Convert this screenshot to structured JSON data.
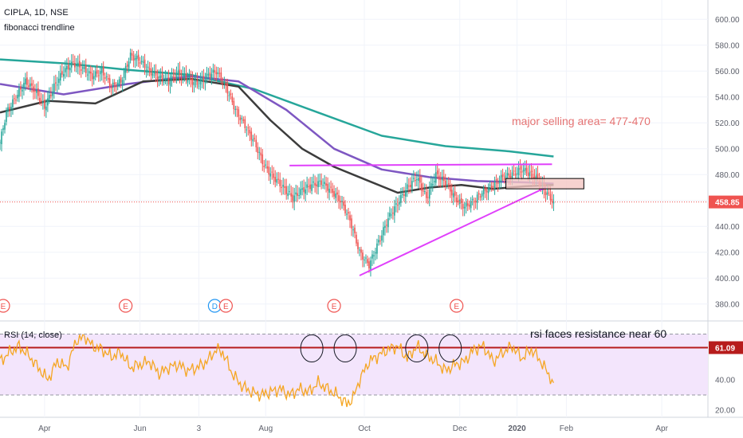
{
  "chart_data": [
    {
      "type": "candlestick",
      "symbol_line": "CIPLA, 1D, NSE",
      "indicator_line": "fibonacci trendline",
      "ylim": [
        370,
        610
      ],
      "y_ticks": [
        "600.00",
        "580.00",
        "560.00",
        "540.00",
        "520.00",
        "500.00",
        "480.00",
        "460.00",
        "440.00",
        "420.00",
        "400.00",
        "380.00"
      ],
      "y_tick_values": [
        600,
        580,
        560,
        540,
        520,
        500,
        480,
        460,
        440,
        420,
        400,
        380
      ],
      "last_price_label": "458.85",
      "last_price": 458.85,
      "x_labels": [
        "Apr",
        "Jun",
        "3",
        "Aug",
        "Oct",
        "Dec",
        "2020",
        "Feb",
        "Apr"
      ],
      "x_label_days": [
        28,
        88,
        125,
        167,
        229,
        289,
        325,
        356,
        416
      ],
      "total_days": 445,
      "ohlc_key_points": [
        [
          0,
          505
        ],
        [
          4,
          528
        ],
        [
          10,
          540
        ],
        [
          16,
          552
        ],
        [
          22,
          545
        ],
        [
          28,
          532
        ],
        [
          34,
          548
        ],
        [
          40,
          560
        ],
        [
          46,
          566
        ],
        [
          52,
          562
        ],
        [
          58,
          556
        ],
        [
          64,
          560
        ],
        [
          70,
          548
        ],
        [
          76,
          552
        ],
        [
          82,
          572
        ],
        [
          88,
          568
        ],
        [
          94,
          560
        ],
        [
          100,
          555
        ],
        [
          106,
          552
        ],
        [
          112,
          558
        ],
        [
          118,
          554
        ],
        [
          124,
          550
        ],
        [
          130,
          556
        ],
        [
          136,
          560
        ],
        [
          142,
          548
        ],
        [
          148,
          530
        ],
        [
          154,
          518
        ],
        [
          160,
          505
        ],
        [
          166,
          487
        ],
        [
          172,
          478
        ],
        [
          178,
          470
        ],
        [
          184,
          462
        ],
        [
          190,
          468
        ],
        [
          196,
          472
        ],
        [
          202,
          474
        ],
        [
          208,
          468
        ],
        [
          214,
          460
        ],
        [
          220,
          445
        ],
        [
          226,
          420
        ],
        [
          232,
          410
        ],
        [
          238,
          428
        ],
        [
          244,
          446
        ],
        [
          250,
          458
        ],
        [
          256,
          470
        ],
        [
          262,
          478
        ],
        [
          268,
          462
        ],
        [
          274,
          480
        ],
        [
          280,
          474
        ],
        [
          286,
          462
        ],
        [
          292,
          455
        ],
        [
          298,
          460
        ],
        [
          304,
          467
        ],
        [
          310,
          472
        ],
        [
          316,
          478
        ],
        [
          322,
          480
        ],
        [
          328,
          484
        ],
        [
          334,
          480
        ],
        [
          338,
          476
        ],
        [
          342,
          468
        ],
        [
          346,
          462
        ],
        [
          348,
          459
        ]
      ],
      "moving_averages": [
        {
          "color": "#26a69a",
          "points": [
            [
              0,
              569
            ],
            [
              40,
              566
            ],
            [
              80,
              561
            ],
            [
              120,
              557
            ],
            [
              160,
              546
            ],
            [
              200,
              528
            ],
            [
              240,
              510
            ],
            [
              280,
              502
            ],
            [
              320,
              498
            ],
            [
              348,
              494
            ]
          ]
        },
        {
          "color": "#7e57c2",
          "points": [
            [
              0,
              550
            ],
            [
              40,
              542
            ],
            [
              80,
              550
            ],
            [
              120,
              556
            ],
            [
              150,
              552
            ],
            [
              180,
              530
            ],
            [
              210,
              500
            ],
            [
              240,
              484
            ],
            [
              270,
              478
            ],
            [
              300,
              475
            ],
            [
              330,
              474
            ],
            [
              348,
              473
            ]
          ]
        },
        {
          "color": "#3c3c3c",
          "points": [
            [
              0,
              528
            ],
            [
              30,
              537
            ],
            [
              60,
              535
            ],
            [
              90,
              552
            ],
            [
              120,
              554
            ],
            [
              150,
              548
            ],
            [
              170,
              522
            ],
            [
              190,
              500
            ],
            [
              210,
              486
            ],
            [
              230,
              476
            ],
            [
              250,
              466
            ],
            [
              270,
              470
            ],
            [
              290,
              472
            ],
            [
              310,
              469
            ],
            [
              330,
              471
            ],
            [
              348,
              472
            ]
          ]
        }
      ],
      "drawings": {
        "trendlines": [
          {
            "color": "#e040fb",
            "points": [
              [
                182,
                487
              ],
              [
                347,
                488
              ]
            ]
          },
          {
            "color": "#e040fb",
            "points": [
              [
                226,
                402
              ],
              [
                343,
                470
              ]
            ]
          }
        ],
        "rectangle": {
          "days": [
            318,
            367
          ],
          "prices": [
            469,
            477
          ],
          "fill": "#f4c7c3",
          "stroke": "#000000"
        },
        "annotation": {
          "text": "major selling area= 477-470",
          "day": 318,
          "price": 518,
          "color": "#e57373"
        }
      },
      "event_markers": [
        {
          "label": "E",
          "day": 2
        },
        {
          "label": "E",
          "day": 79
        },
        {
          "label": "D",
          "day": 135,
          "color": "#2196f3"
        },
        {
          "label": "E",
          "day": 142
        },
        {
          "label": "E",
          "day": 210
        },
        {
          "label": "E",
          "day": 287
        }
      ]
    },
    {
      "type": "line",
      "legend": "RSI (14, close)",
      "ylim": [
        18,
        76
      ],
      "y_ticks": [
        "40.00",
        "20.00"
      ],
      "y_tick_values": [
        40,
        20
      ],
      "upper_band": 70,
      "lower_band": 30,
      "resistance_level": 61.09,
      "resistance_label": "61.09",
      "annotation": "rsi faces resistance near 60",
      "circles_days": [
        196,
        217,
        262,
        283
      ],
      "series_color": "#f5a623",
      "rsi_points": [
        [
          0,
          52
        ],
        [
          6,
          58
        ],
        [
          12,
          62
        ],
        [
          18,
          56
        ],
        [
          24,
          48
        ],
        [
          30,
          40
        ],
        [
          36,
          52
        ],
        [
          42,
          48
        ],
        [
          48,
          66
        ],
        [
          54,
          68
        ],
        [
          58,
          62
        ],
        [
          64,
          60
        ],
        [
          70,
          55
        ],
        [
          76,
          58
        ],
        [
          82,
          48
        ],
        [
          88,
          50
        ],
        [
          94,
          52
        ],
        [
          100,
          44
        ],
        [
          106,
          48
        ],
        [
          112,
          50
        ],
        [
          118,
          46
        ],
        [
          124,
          48
        ],
        [
          130,
          52
        ],
        [
          136,
          60
        ],
        [
          140,
          58
        ],
        [
          146,
          44
        ],
        [
          152,
          36
        ],
        [
          158,
          32
        ],
        [
          164,
          30
        ],
        [
          170,
          32
        ],
        [
          176,
          34
        ],
        [
          182,
          30
        ],
        [
          188,
          34
        ],
        [
          194,
          32
        ],
        [
          200,
          38
        ],
        [
          206,
          34
        ],
        [
          212,
          30
        ],
        [
          218,
          24
        ],
        [
          222,
          28
        ],
        [
          226,
          40
        ],
        [
          232,
          52
        ],
        [
          238,
          56
        ],
        [
          244,
          60
        ],
        [
          250,
          62
        ],
        [
          256,
          54
        ],
        [
          262,
          62
        ],
        [
          268,
          56
        ],
        [
          274,
          52
        ],
        [
          280,
          46
        ],
        [
          286,
          50
        ],
        [
          292,
          52
        ],
        [
          298,
          60
        ],
        [
          304,
          62
        ],
        [
          310,
          52
        ],
        [
          316,
          58
        ],
        [
          322,
          62
        ],
        [
          328,
          54
        ],
        [
          334,
          60
        ],
        [
          340,
          52
        ],
        [
          348,
          38
        ]
      ]
    }
  ]
}
